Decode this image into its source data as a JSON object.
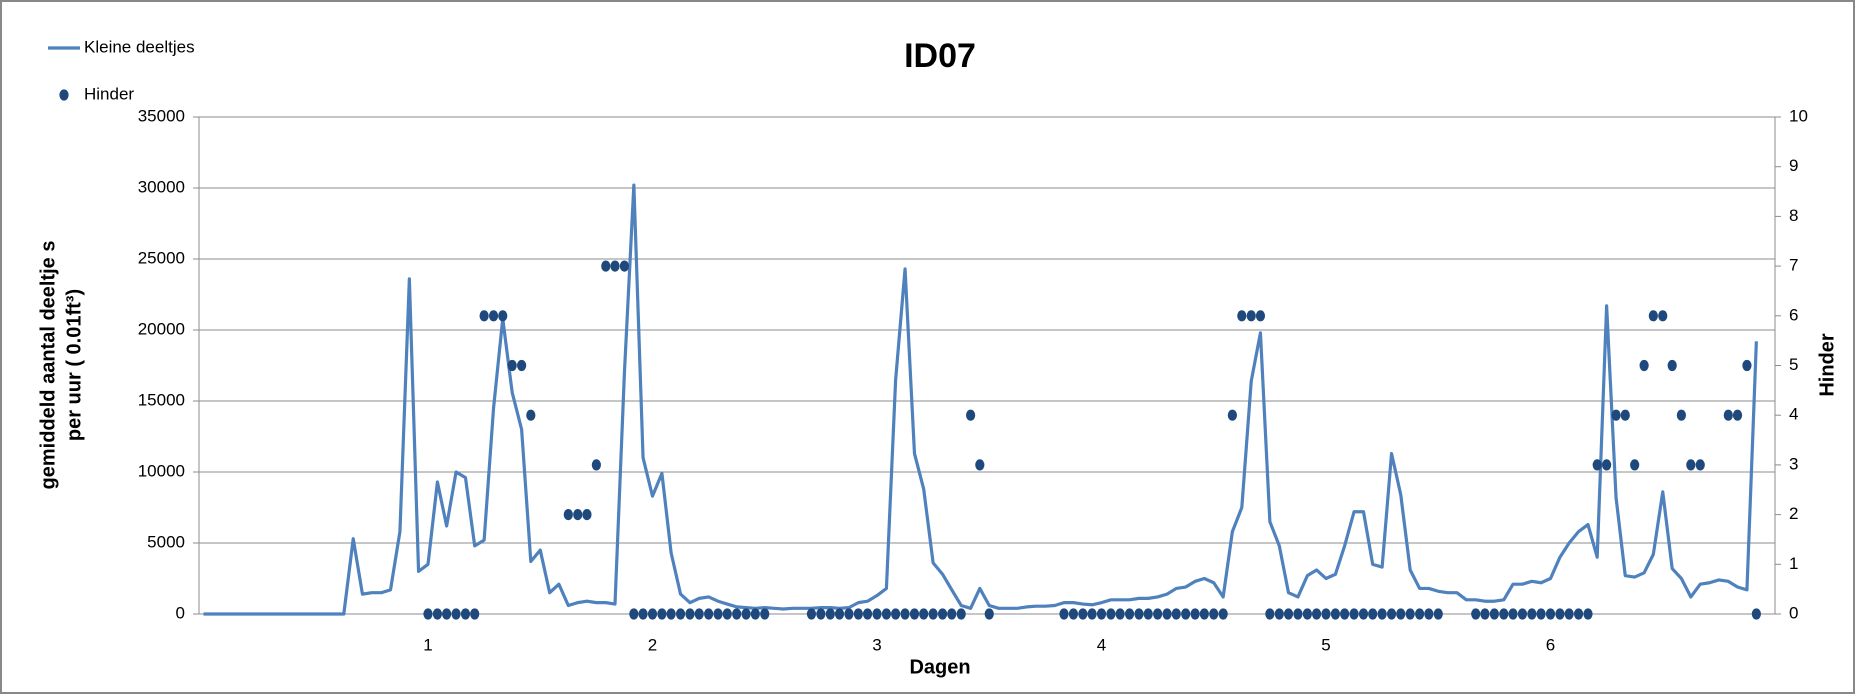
{
  "chart_data": {
    "type": "line",
    "title": "ID07",
    "xlabel": "Dagen",
    "ylabel": [
      "gemiddeld aantal deeltje s",
      "per uur ( 0.01ft³)"
    ],
    "y2label": "Hinder",
    "x": [
      0,
      0.042,
      0.083,
      0.125,
      0.167,
      0.208,
      0.25,
      0.292,
      0.333,
      0.375,
      0.417,
      0.458,
      0.5,
      0.542,
      0.583,
      0.625,
      0.667,
      0.708,
      0.75,
      0.792,
      0.833,
      0.875,
      0.917,
      0.958,
      1,
      1.042,
      1.083,
      1.125,
      1.167,
      1.208,
      1.25,
      1.292,
      1.333,
      1.375,
      1.417,
      1.458,
      1.5,
      1.542,
      1.583,
      1.625,
      1.667,
      1.708,
      1.75,
      1.792,
      1.833,
      1.875,
      1.917,
      1.958,
      2,
      2.042,
      2.083,
      2.125,
      2.167,
      2.208,
      2.25,
      2.292,
      2.333,
      2.375,
      2.417,
      2.458,
      2.5,
      2.542,
      2.583,
      2.625,
      2.667,
      2.708,
      2.75,
      2.792,
      2.833,
      2.875,
      2.917,
      2.958,
      3,
      3.042,
      3.083,
      3.125,
      3.167,
      3.208,
      3.25,
      3.292,
      3.333,
      3.375,
      3.417,
      3.458,
      3.5,
      3.542,
      3.583,
      3.625,
      3.667,
      3.708,
      3.75,
      3.792,
      3.833,
      3.875,
      3.917,
      3.958,
      4,
      4.042,
      4.083,
      4.125,
      4.167,
      4.208,
      4.25,
      4.292,
      4.333,
      4.375,
      4.417,
      4.458,
      4.5,
      4.542,
      4.583,
      4.625,
      4.667,
      4.708,
      4.75,
      4.792,
      4.833,
      4.875,
      4.917,
      4.958,
      5,
      5.042,
      5.083,
      5.125,
      5.167,
      5.208,
      5.25,
      5.292,
      5.333,
      5.375,
      5.417,
      5.458,
      5.5,
      5.542,
      5.583,
      5.625,
      5.667,
      5.708,
      5.75,
      5.792,
      5.833,
      5.875,
      5.917,
      5.958,
      6,
      6.042,
      6.083,
      6.125,
      6.167,
      6.208,
      6.25,
      6.292,
      6.333,
      6.375,
      6.417,
      6.458,
      6.5,
      6.542,
      6.583,
      6.625,
      6.667,
      6.708,
      6.75,
      6.792,
      6.833,
      6.875,
      6.917
    ],
    "series": [
      {
        "name": "Kleine deeltjes",
        "color": "#4f81bd",
        "values": [
          0,
          0,
          0,
          0,
          0,
          0,
          0,
          0,
          0,
          0,
          0,
          0,
          0,
          0,
          0,
          0,
          5300,
          1400,
          1500,
          1500,
          1700,
          5800,
          23600,
          3000,
          3500,
          9300,
          6200,
          10000,
          9600,
          4800,
          5200,
          14500,
          20800,
          15600,
          13000,
          3700,
          4500,
          1500,
          2100,
          600,
          800,
          900,
          800,
          800,
          700,
          17000,
          30200,
          11000,
          8300,
          9900,
          4300,
          1400,
          800,
          1100,
          1200,
          900,
          700,
          500,
          450,
          400,
          450,
          400,
          350,
          400,
          400,
          400,
          450,
          450,
          400,
          450,
          800,
          900,
          1300,
          1800,
          16500,
          24300,
          11300,
          8800,
          3600,
          2800,
          1700,
          600,
          400,
          1800,
          600,
          400,
          400,
          400,
          500,
          550,
          550,
          600,
          800,
          800,
          700,
          650,
          800,
          1000,
          1000,
          1000,
          1100,
          1100,
          1200,
          1400,
          1800,
          1900,
          2300,
          2500,
          2200,
          1200,
          5800,
          7500,
          16400,
          19800,
          6500,
          4800,
          1500,
          1200,
          2700,
          3100,
          2500,
          2800,
          4800,
          7200,
          7200,
          3500,
          3300,
          11300,
          8400,
          3100,
          1800,
          1800,
          1600,
          1500,
          1500,
          1000,
          1000,
          900,
          900,
          1000,
          2100,
          2100,
          2300,
          2200,
          2500,
          4000,
          5000,
          5800,
          6300,
          4000,
          21700,
          8200,
          2700,
          2600,
          2900,
          4200,
          8600,
          3200,
          2500,
          1200,
          2100,
          2200,
          2400,
          2300,
          1900,
          1700,
          19200
        ]
      },
      {
        "name": "Hinder",
        "type": "scatter",
        "axis": "y2",
        "color": "#1f497d",
        "values": [
          null,
          null,
          null,
          null,
          null,
          null,
          null,
          null,
          null,
          null,
          null,
          null,
          null,
          null,
          null,
          null,
          null,
          null,
          null,
          null,
          null,
          null,
          null,
          null,
          0,
          0,
          0,
          0,
          0,
          0,
          6,
          6,
          6,
          5,
          5,
          4,
          null,
          null,
          null,
          2,
          2,
          2,
          3,
          7,
          7,
          7,
          0,
          0,
          0,
          0,
          0,
          0,
          0,
          0,
          0,
          0,
          0,
          0,
          0,
          0,
          0,
          null,
          null,
          null,
          null,
          0,
          0,
          0,
          0,
          0,
          0,
          0,
          0,
          0,
          0,
          0,
          0,
          0,
          0,
          0,
          0,
          0,
          4,
          3,
          0,
          null,
          null,
          null,
          null,
          null,
          null,
          null,
          0,
          0,
          0,
          0,
          0,
          0,
          0,
          0,
          0,
          0,
          0,
          0,
          0,
          0,
          0,
          0,
          0,
          0,
          4,
          6,
          6,
          6,
          0,
          0,
          0,
          0,
          0,
          0,
          0,
          0,
          0,
          0,
          0,
          0,
          0,
          0,
          0,
          0,
          0,
          0,
          0,
          null,
          null,
          null,
          0,
          0,
          0,
          0,
          0,
          0,
          0,
          0,
          0,
          0,
          0,
          0,
          0,
          3,
          3,
          4,
          4,
          3,
          5,
          6,
          6,
          5,
          4,
          3,
          3,
          null,
          null,
          4,
          4,
          5,
          0
        ]
      }
    ],
    "xlim": [
      -0.02,
      7
    ],
    "xticks": [
      1,
      2,
      3,
      4,
      5,
      6
    ],
    "ylim": [
      0,
      35000
    ],
    "yticks": [
      0,
      5000,
      10000,
      15000,
      20000,
      25000,
      30000,
      35000
    ],
    "y2lim": [
      0,
      10
    ],
    "y2ticks": [
      0,
      1,
      2,
      3,
      4,
      5,
      6,
      7,
      8,
      9,
      10
    ],
    "grid": true,
    "legend": "top-left"
  }
}
